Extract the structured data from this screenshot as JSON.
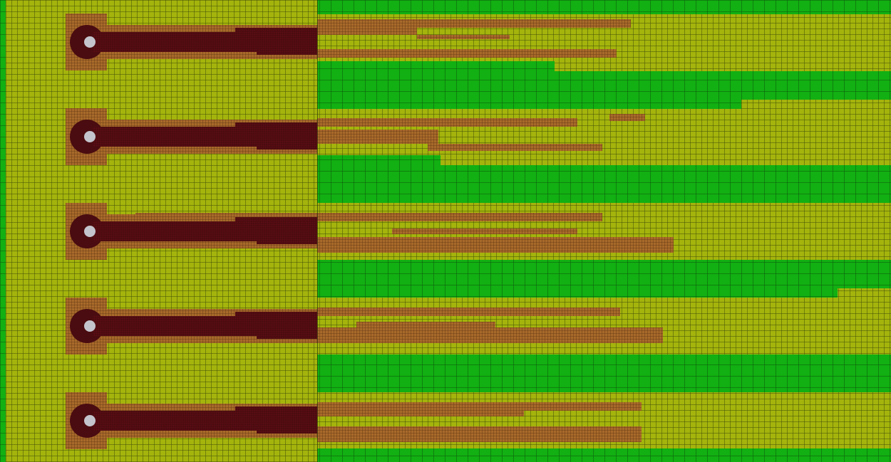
{
  "colors": {
    "coarse_region": "#a4b40c",
    "outer_region": "#12b012",
    "refined_region": "#a86a2a",
    "finest_region": "#4a0c10",
    "probe": "#c4c4cc",
    "grid_line": "#1e2a08"
  }
}
